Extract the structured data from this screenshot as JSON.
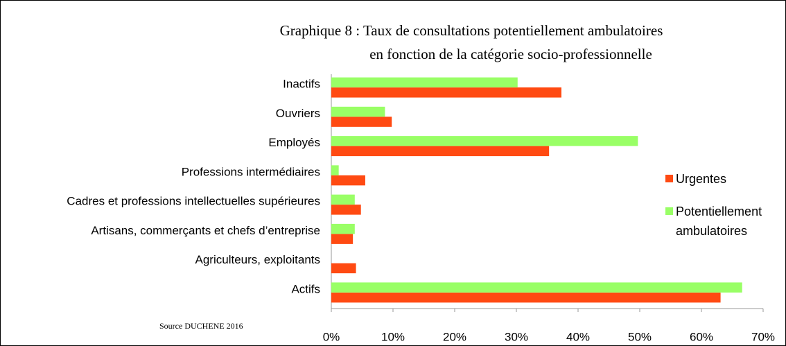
{
  "chart_data": {
    "type": "bar",
    "orientation": "horizontal",
    "title": [
      "Graphique 8 : Taux de consultations potentiellement ambulatoires",
      "en fonction de la catégorie socio-professionnelle"
    ],
    "source": "Source DUCHENE 2016",
    "categories": [
      "Inactifs",
      "Ouvriers",
      "Employés",
      "Professions intermédiaires",
      "Cadres et professions intellectuelles supérieures",
      "Artisans, commerçants et chefs d’entreprise",
      "Agriculteurs, exploitants",
      "Actifs"
    ],
    "series": [
      {
        "name": "Urgentes",
        "color": "#ff4a12",
        "values": [
          37.3,
          9.8,
          35.3,
          5.5,
          4.8,
          3.5,
          4.0,
          63.1
        ]
      },
      {
        "name": "Potentiellement ambulatoires",
        "color": "#99ff66",
        "values": [
          30.2,
          8.7,
          49.7,
          1.2,
          3.8,
          3.8,
          0,
          66.6
        ]
      }
    ],
    "xlim": [
      0,
      70
    ],
    "xticks": [
      {
        "value": 0,
        "label": "0%"
      },
      {
        "value": 10,
        "label": "10%"
      },
      {
        "value": 20,
        "label": "20%"
      },
      {
        "value": 30,
        "label": "30%"
      },
      {
        "value": 40,
        "label": "40%"
      },
      {
        "value": 50,
        "label": "50%"
      },
      {
        "value": 60,
        "label": "60%"
      },
      {
        "value": 70,
        "label": "70%"
      }
    ],
    "legend": "right"
  }
}
